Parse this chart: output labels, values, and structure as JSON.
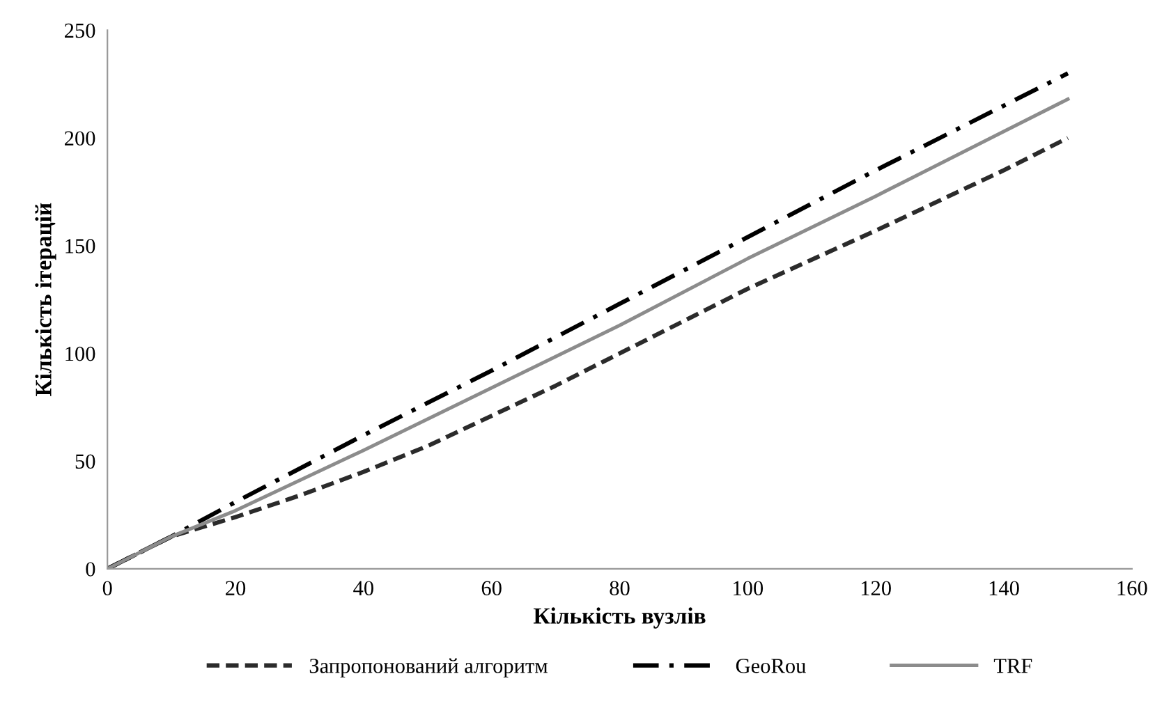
{
  "chart_data": {
    "type": "line",
    "xlabel": "Кількість вузлів",
    "ylabel": "Кількість ітерацій",
    "xlim": [
      0,
      160
    ],
    "xticks": [
      0,
      20,
      40,
      60,
      80,
      100,
      120,
      140,
      160
    ],
    "ylim": [
      0,
      250
    ],
    "yticks": [
      0,
      50,
      100,
      150,
      200,
      250
    ],
    "grid": false,
    "legend": "bottom",
    "marker": "none",
    "series": [
      {
        "name": "Запропонований алгоритм",
        "color": "#2b2b2b",
        "line_style": "dashed",
        "x": [
          0,
          10,
          20,
          30,
          40,
          50,
          60,
          70,
          80,
          90,
          100,
          120,
          140,
          150
        ],
        "values": [
          0,
          15,
          24,
          34,
          45,
          57,
          71,
          85,
          100,
          115,
          130,
          157,
          185,
          200
        ]
      },
      {
        "name": "GeoRou",
        "color": "#000000",
        "line_style": "dashdot",
        "x": [
          0,
          10,
          20,
          40,
          60,
          80,
          100,
          120,
          140,
          150
        ],
        "values": [
          0,
          15,
          31,
          62,
          92,
          123,
          154,
          185,
          215,
          230
        ]
      },
      {
        "name": "TRF",
        "color": "#8c8c8c",
        "line_style": "solid",
        "x": [
          0,
          10,
          20,
          40,
          60,
          80,
          100,
          120,
          140,
          150
        ],
        "values": [
          0,
          15,
          27,
          55,
          84,
          113,
          144,
          173,
          203,
          218
        ]
      }
    ]
  }
}
